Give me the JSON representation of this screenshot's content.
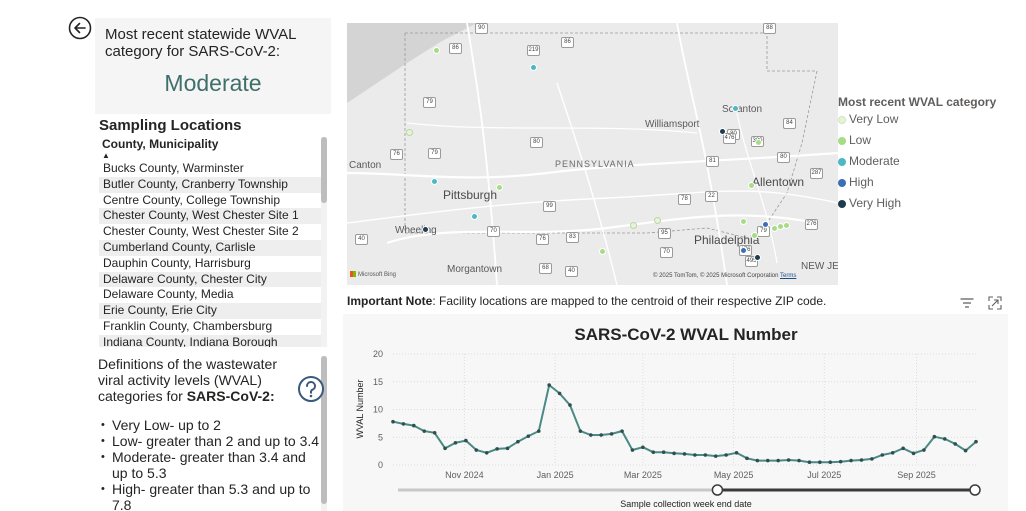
{
  "summary": {
    "caption": "Most recent statewide WVAL category for SARS-CoV-2:",
    "value": "Moderate",
    "value_color": "#3f6f6a"
  },
  "icons": {
    "back": "back-arrow-icon",
    "help": "question-mark-icon",
    "filter": "filter-icon",
    "focus": "focus-mode-icon"
  },
  "sampling": {
    "title": "Sampling Locations",
    "column_header": "County, Municipality",
    "sort_indicator": "▲",
    "rows": [
      "Bucks County, Warminster",
      "Butler County, Cranberry Township",
      "Centre County, College Township",
      "Chester County, West Chester Site 1",
      "Chester County, West Chester Site 2",
      "Cumberland County, Carlisle",
      "Dauphin County, Harrisburg",
      "Delaware County, Chester City",
      "Delaware County, Media",
      "Erie County, Erie City",
      "Franklin County, Chambersburg",
      "Indiana County, Indiana Borough"
    ]
  },
  "definitions": {
    "intro_prefix": "Definitions of the wastewater viral activity levels (WVAL) categories for ",
    "intro_bold": "SARS-CoV-2:",
    "items": [
      "Very Low- up to 2",
      "Low- greater than 2 and up to 3.4",
      "Moderate- greater than 3.4 and up to 5.3",
      "High- greater than 5.3 and up to 7.8"
    ]
  },
  "map": {
    "cities": {
      "scranton": "Scranton",
      "williamsport": "Williamsport",
      "pennsylvania": "PENNSYLVANIA",
      "allentown": "Allentown",
      "pittsburgh": "Pittsburgh",
      "canton": "Canton",
      "wheeling": "Wheeling",
      "philadelphia": "Philadelphia",
      "morgantown": "Morgantown",
      "new_jersey": "NEW JE"
    },
    "shields": [
      "90",
      "86",
      "219",
      "86",
      "88",
      "79",
      "80",
      "476",
      "380",
      "81",
      "84",
      "80",
      "287",
      "76",
      "79",
      "80",
      "99",
      "78",
      "22",
      "70",
      "76",
      "83",
      "95",
      "276",
      "79",
      "70",
      "476",
      "68",
      "40",
      "495",
      "40"
    ],
    "brand": "Microsoft Bing",
    "copyright": "© 2025 TomTom, © 2025 Microsoft Corporation",
    "terms": "Terms",
    "lake_color": "#d4d4d4",
    "land_color": "#ebebeb"
  },
  "legend": {
    "title": "Most recent WVAL category",
    "items": [
      {
        "label": "Very Low",
        "color": "#e6f4d8"
      },
      {
        "label": "Low",
        "color": "#a7dc87"
      },
      {
        "label": "Moderate",
        "color": "#4cb8c4"
      },
      {
        "label": "High",
        "color": "#3b6fb6"
      },
      {
        "label": "Very High",
        "color": "#1f3b4d"
      }
    ]
  },
  "note": {
    "bold": "Important Note",
    "text": ": Facility locations are mapped to the centroid of their respective ZIP code."
  },
  "chart_data": {
    "type": "line",
    "title": "SARS-CoV-2 WVAL Number",
    "xlabel": "Sample collection week end date",
    "ylabel": "WVAL Number",
    "ylim": [
      0,
      20
    ],
    "yticks": [
      "0",
      "5",
      "10",
      "15",
      "20"
    ],
    "xticks": [
      "Nov 2024",
      "Jan 2025",
      "Mar 2025",
      "May 2025",
      "Jul 2025",
      "Sep 2025"
    ],
    "grid": true,
    "series_color": "#4a8a84",
    "x": [
      "2024-09-14",
      "2024-09-21",
      "2024-09-28",
      "2024-10-05",
      "2024-10-12",
      "2024-10-19",
      "2024-10-26",
      "2024-11-02",
      "2024-11-09",
      "2024-11-16",
      "2024-11-23",
      "2024-11-30",
      "2024-12-07",
      "2024-12-14",
      "2024-12-21",
      "2024-12-28",
      "2025-01-04",
      "2025-01-11",
      "2025-01-18",
      "2025-01-25",
      "2025-02-01",
      "2025-02-08",
      "2025-02-15",
      "2025-02-22",
      "2025-03-01",
      "2025-03-08",
      "2025-03-15",
      "2025-03-22",
      "2025-03-29",
      "2025-04-05",
      "2025-04-12",
      "2025-04-19",
      "2025-04-26",
      "2025-05-03",
      "2025-05-10",
      "2025-05-17",
      "2025-05-24",
      "2025-05-31",
      "2025-06-07",
      "2025-06-14",
      "2025-06-21",
      "2025-06-28",
      "2025-07-05",
      "2025-07-12",
      "2025-07-19",
      "2025-07-26",
      "2025-08-02",
      "2025-08-09",
      "2025-08-16",
      "2025-08-23",
      "2025-08-30",
      "2025-09-06",
      "2025-09-13",
      "2025-09-20",
      "2025-09-27",
      "2025-10-04",
      "2025-10-11"
    ],
    "values": [
      7.8,
      7.4,
      7.1,
      6.1,
      5.8,
      3.0,
      4.0,
      4.4,
      2.7,
      2.2,
      2.9,
      3.0,
      4.2,
      5.2,
      6.1,
      14.4,
      12.9,
      10.8,
      6.1,
      5.4,
      5.4,
      5.6,
      6.1,
      2.7,
      3.2,
      2.3,
      2.3,
      2.1,
      2.0,
      1.8,
      1.8,
      1.6,
      1.8,
      2.2,
      1.2,
      0.8,
      0.8,
      0.8,
      0.9,
      0.8,
      0.5,
      0.5,
      0.5,
      0.6,
      0.8,
      0.9,
      1.1,
      1.8,
      2.2,
      3.0,
      2.1,
      2.7,
      5.1,
      4.7,
      3.8,
      2.6,
      4.2
    ],
    "slider_range": [
      "2025-04-19",
      "2025-10-11"
    ]
  }
}
